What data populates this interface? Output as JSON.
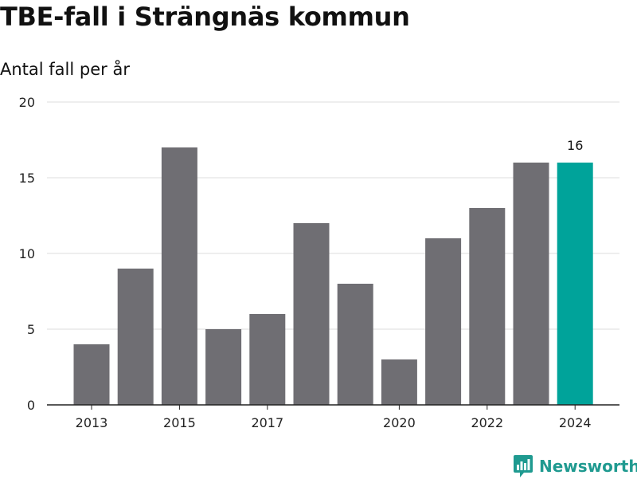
{
  "chart_data": {
    "type": "bar",
    "title": "TBE-fall i Strängnäs kommun",
    "subtitle": "Antal fall per år",
    "categories": [
      2013,
      2014,
      2015,
      2016,
      2017,
      2018,
      2019,
      2020,
      2021,
      2022,
      2023,
      2024
    ],
    "values": [
      4,
      9,
      17,
      5,
      6,
      12,
      8,
      3,
      11,
      13,
      16,
      16
    ],
    "x_tick_labels": [
      "2013",
      "2015",
      "2017",
      "2020",
      "2022",
      "2024"
    ],
    "y_ticks": [
      0,
      5,
      10,
      15,
      20
    ],
    "ylim": [
      0,
      20
    ],
    "highlight": {
      "category": 2024,
      "label": "16"
    },
    "grid": true,
    "colors": {
      "bar": "#6f6e73",
      "highlight": "#00a39a",
      "grid": "#dcdcdc",
      "axis": "#222222"
    }
  },
  "brand": {
    "name": "Newsworthy",
    "icon": "newsworthy-logo-icon",
    "color": "#1f9a90"
  }
}
